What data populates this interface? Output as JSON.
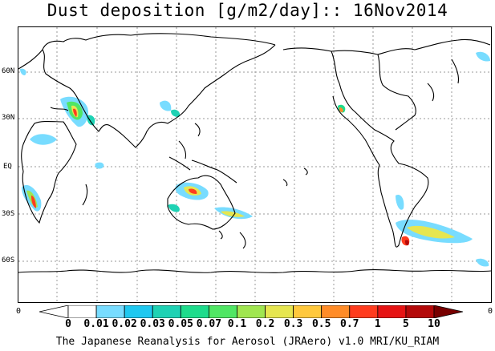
{
  "title": "Dust deposition [g/m2/day]:: 16Nov2014",
  "latitude_labels": [
    "60N",
    "30N",
    "EQ",
    "30S",
    "60S"
  ],
  "edge_labels": {
    "left": "0",
    "right": "0"
  },
  "colorbar": {
    "labels": [
      "0",
      "0.01",
      "0.02",
      "0.03",
      "0.05",
      "0.07",
      "0.1",
      "0.2",
      "0.3",
      "0.5",
      "0.7",
      "1",
      "5",
      "10"
    ],
    "colors": [
      "#ffffff",
      "#ffffff",
      "#78dcff",
      "#1ec8f0",
      "#1ed2b4",
      "#1edc8c",
      "#50e664",
      "#a0e650",
      "#e6e650",
      "#ffc83c",
      "#ff8c28",
      "#ff3c1e",
      "#e61414",
      "#b40a0a",
      "#780000"
    ]
  },
  "footer": "The Japanese Reanalysis for Aerosol (JRAero) v1.0 MRI/KU_RIAM"
}
